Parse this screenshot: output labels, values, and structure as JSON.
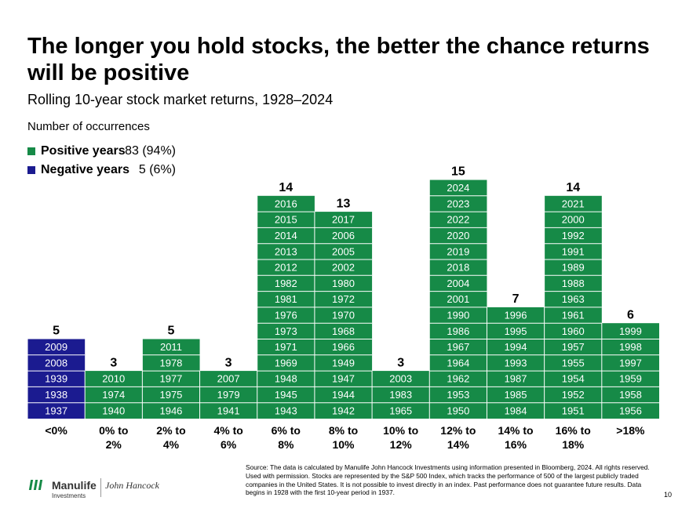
{
  "chart_data": {
    "type": "unit-column",
    "title": "The longer you hold stocks, the better the chance returns will be positive",
    "subtitle": "Rolling 10-year stock market returns, 1928–2024",
    "y_label": "Number of occurrences",
    "legend": [
      {
        "name": "Positive years",
        "color": "#168a47",
        "value": 83,
        "value_label": "83 (94%)"
      },
      {
        "name": "Negative years",
        "color": "#1b1b90",
        "value": 5,
        "value_label": "5 (6%)"
      }
    ],
    "categories": [
      "<0%",
      "0% to 2%",
      "2% to 4%",
      "4% to 6%",
      "6% to 8%",
      "8% to 10%",
      "10% to 12%",
      "12% to 14%",
      "14% to 16%",
      "16% to 18%",
      ">18%"
    ],
    "counts": [
      5,
      3,
      5,
      3,
      14,
      13,
      3,
      15,
      7,
      14,
      6
    ],
    "colors": [
      "#1b1b90",
      "#168a47",
      "#168a47",
      "#168a47",
      "#168a47",
      "#168a47",
      "#168a47",
      "#168a47",
      "#168a47",
      "#168a47",
      "#168a47"
    ],
    "years": [
      [
        "1937",
        "1938",
        "1939",
        "2008",
        "2009"
      ],
      [
        "1940",
        "1974",
        "2010"
      ],
      [
        "1946",
        "1975",
        "1977",
        "1978",
        "2011"
      ],
      [
        "1941",
        "1979",
        "2007"
      ],
      [
        "1943",
        "1945",
        "1948",
        "1969",
        "1971",
        "1973",
        "1976",
        "1981",
        "1982",
        "2012",
        "2013",
        "2014",
        "2015",
        "2016"
      ],
      [
        "1942",
        "1944",
        "1947",
        "1949",
        "1966",
        "1968",
        "1970",
        "1972",
        "1980",
        "2002",
        "2005",
        "2006",
        "2017"
      ],
      [
        "1965",
        "1983",
        "2003"
      ],
      [
        "1950",
        "1953",
        "1962",
        "1964",
        "1967",
        "1986",
        "1990",
        "2001",
        "2004",
        "2018",
        "2019",
        "2020",
        "2022",
        "2023",
        "2024"
      ],
      [
        "1984",
        "1985",
        "1987",
        "1993",
        "1994",
        "1995",
        "1996"
      ],
      [
        "1951",
        "1952",
        "1954",
        "1955",
        "1957",
        "1960",
        "1961",
        "1963",
        "1988",
        "1989",
        "1991",
        "1992",
        "2000",
        "2021"
      ],
      [
        "1956",
        "1958",
        "1959",
        "1997",
        "1998",
        "1999"
      ]
    ]
  },
  "footer": {
    "source": "Source: The data is calculated by Manulife John Hancock Investments using information presented in Bloomberg, 2024. All rights reserved. Used with permission. Stocks are represented by the S&P 500 Index, which tracks the performance of 500 of the largest publicly traded companies in the United States. It is not possible to invest directly in an index. Past performance does not guarantee future results. Data begins in 1928 with the first 10-year period in 1937.",
    "page_number": "10",
    "logo_name": "Manulife",
    "logo_sub": "Investments",
    "logo_partner": "John Hancock"
  }
}
